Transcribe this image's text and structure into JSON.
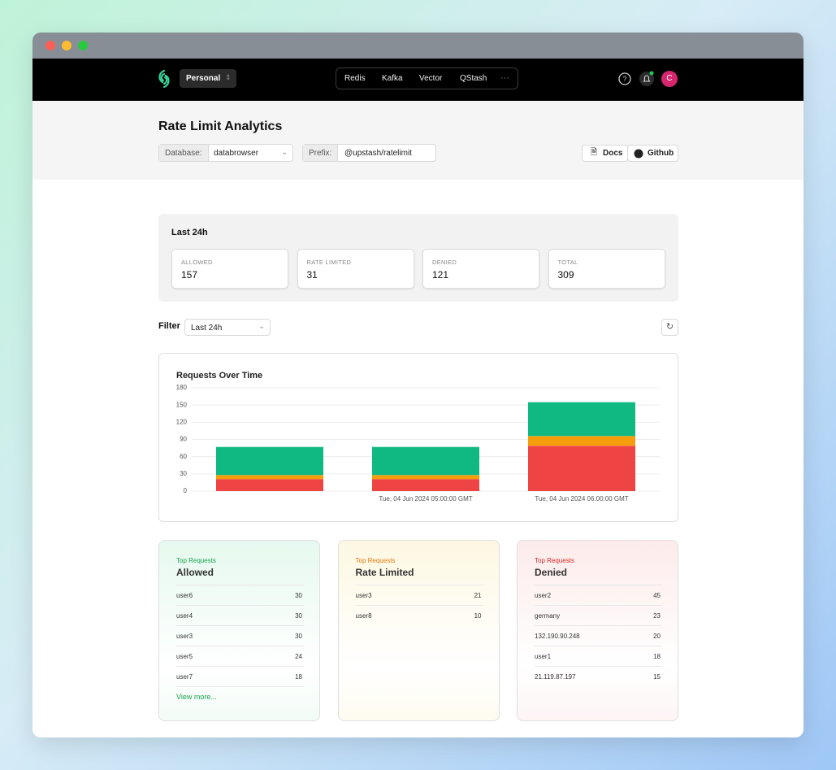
{
  "nav": {
    "workspace": "Personal",
    "products": [
      "Redis",
      "Kafka",
      "Vector",
      "QStash"
    ],
    "more": "···",
    "avatar": "C"
  },
  "header": {
    "title": "Rate Limit Analytics",
    "database_label": "Database:",
    "database": "databrowser",
    "prefix_label": "Prefix:",
    "prefix": "@upstash/ratelimit",
    "docs": "Docs",
    "github": "Github"
  },
  "summary": {
    "title": "Last 24h",
    "stats": [
      {
        "label": "ALLOWED",
        "value": 157
      },
      {
        "label": "RATE LIMITED",
        "value": 31
      },
      {
        "label": "DENIED",
        "value": 121
      },
      {
        "label": "TOTAL",
        "value": 309
      }
    ]
  },
  "filter": {
    "label": "Filter",
    "value": "Last 24h"
  },
  "chart_data": {
    "type": "bar",
    "stacked": true,
    "title": "Requests Over Time",
    "categories": [
      null,
      "Tue, 04 Jun 2024 05:00:00 GMT",
      "Tue, 04 Jun 2024 06:00:00 GMT"
    ],
    "series": [
      {
        "color": "#ef4444",
        "values": [
          21,
          21,
          79
        ]
      },
      {
        "color": "#f59e0b",
        "values": [
          7,
          7,
          17
        ]
      },
      {
        "color": "#10b981",
        "values": [
          49,
          49,
          59
        ]
      }
    ],
    "ylim": [
      0,
      180
    ],
    "yticks": [
      0,
      30,
      60,
      90,
      120,
      150,
      180
    ],
    "grid": true
  },
  "top_lists": [
    {
      "kicker": "Top Requests",
      "title": "Allowed",
      "color": "#16a34a",
      "tint": "#e6f9ef",
      "rows": [
        {
          "name": "user6",
          "count": 30
        },
        {
          "name": "user4",
          "count": 30
        },
        {
          "name": "user3",
          "count": 30
        },
        {
          "name": "user5",
          "count": 24
        },
        {
          "name": "user7",
          "count": 18
        }
      ],
      "more": "View more..."
    },
    {
      "kicker": "Top Requests",
      "title": "Rate Limited",
      "color": "#ea7a0c",
      "tint": "#fdf8e2",
      "rows": [
        {
          "name": "user3",
          "count": 21
        },
        {
          "name": "user8",
          "count": 10
        }
      ]
    },
    {
      "kicker": "Top Requests",
      "title": "Denied",
      "color": "#dc2626",
      "tint": "#fdebeb",
      "rows": [
        {
          "name": "user2",
          "count": 45
        },
        {
          "name": "germany",
          "count": 23
        },
        {
          "name": "132.190.90.248",
          "count": 20
        },
        {
          "name": "user1",
          "count": 18
        },
        {
          "name": "21.119.87.197",
          "count": 15
        }
      ]
    }
  ]
}
